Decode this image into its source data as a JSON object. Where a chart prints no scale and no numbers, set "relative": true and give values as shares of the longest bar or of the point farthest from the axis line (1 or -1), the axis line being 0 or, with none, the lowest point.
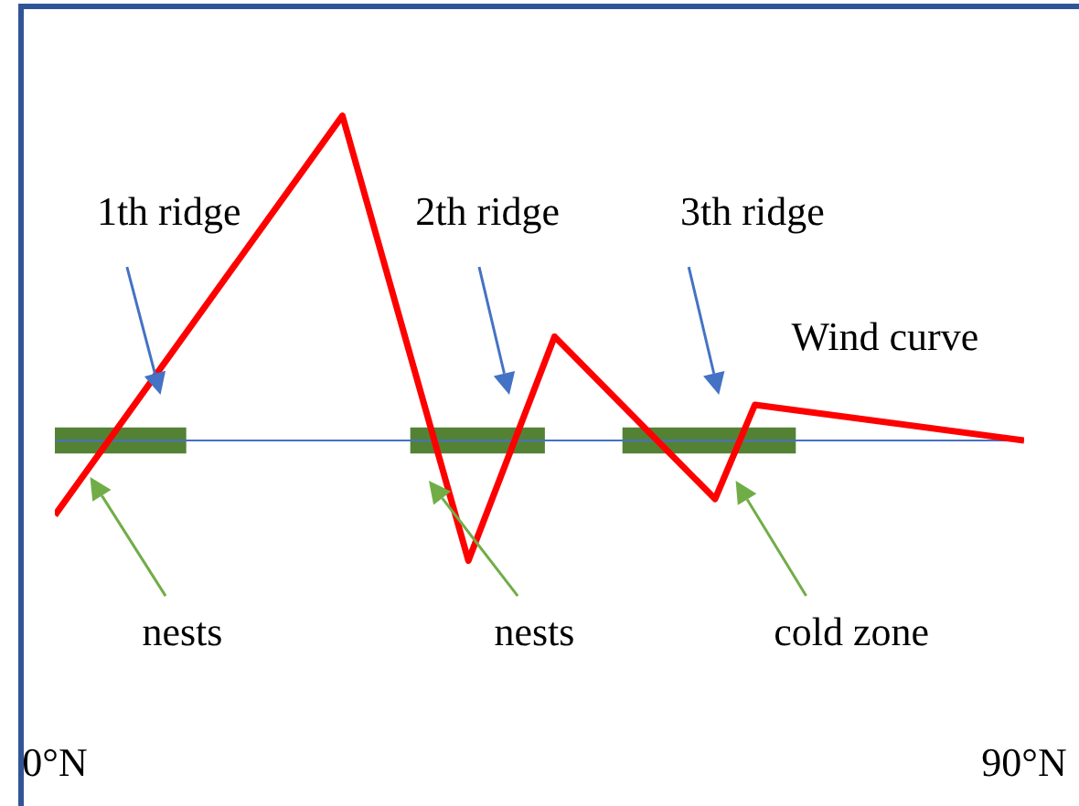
{
  "chart_data": {
    "type": "line",
    "relative": true,
    "xlim": [
      0,
      90
    ],
    "xticks": [
      {
        "value": 0,
        "label": "0°N"
      },
      {
        "value": 90,
        "label": "90°N"
      }
    ],
    "series": [
      {
        "name": "Wind curve",
        "color": "#ff0000",
        "x": [
          0,
          26.7,
          38.4,
          46.4,
          61.3,
          65,
          90
        ],
        "values": [
          -0.23,
          1,
          -0.37,
          0.32,
          -0.18,
          0.11,
          0
        ]
      }
    ],
    "ref_lines": [
      {
        "axis": "y",
        "value": 0,
        "color": "#4472c4"
      }
    ],
    "bands": [
      {
        "axis": "x",
        "from": 0,
        "to": 12.2,
        "color": "#548235"
      },
      {
        "axis": "x",
        "from": 33,
        "to": 45.5,
        "color": "#548235"
      },
      {
        "axis": "x",
        "from": 52.7,
        "to": 68.8,
        "color": "#548235"
      }
    ],
    "annotations": [
      "1th ridge",
      "2th ridge",
      "3th ridge",
      "nests",
      "nests",
      "cold zone"
    ],
    "marker": "none",
    "line_style": "solid"
  }
}
